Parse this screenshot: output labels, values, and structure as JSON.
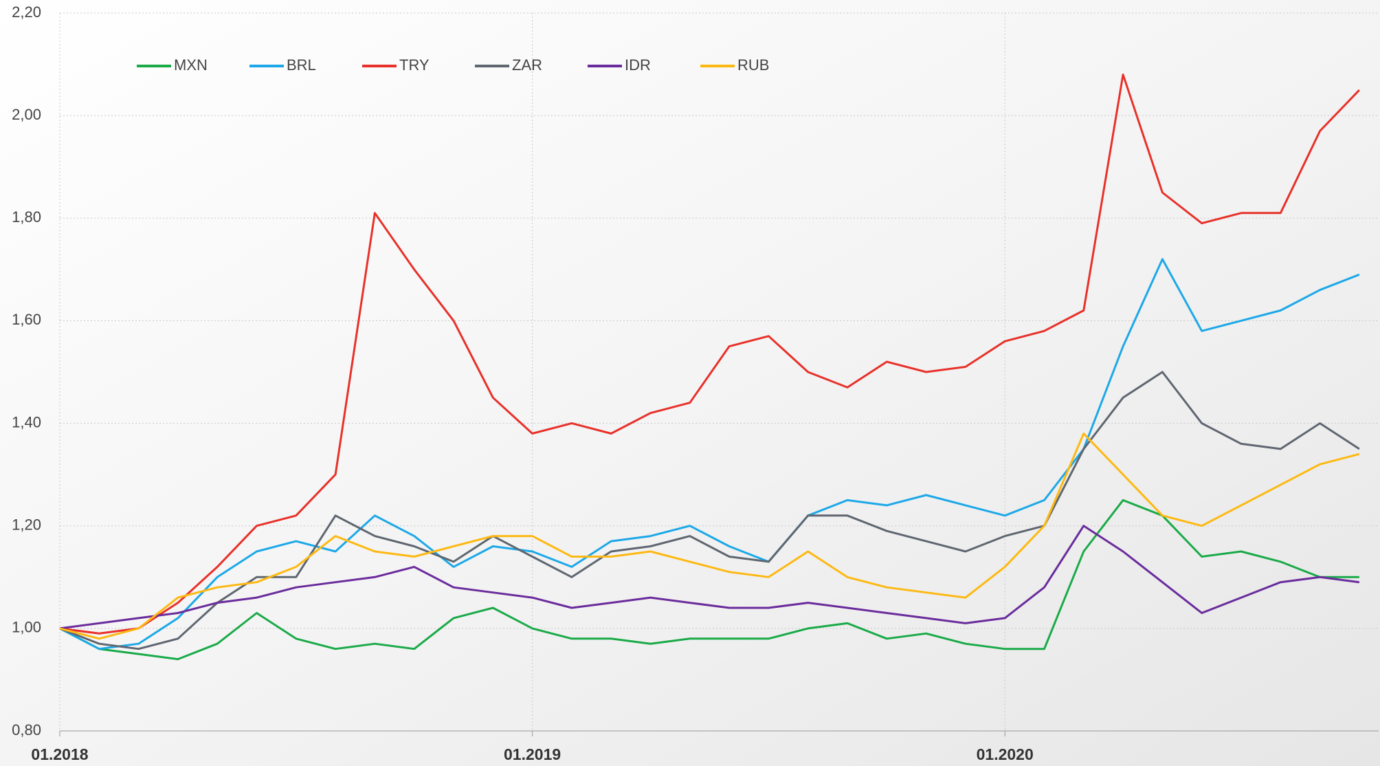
{
  "chart_data": {
    "type": "line",
    "categories": [
      "01.2018",
      null,
      null,
      null,
      null,
      null,
      null,
      null,
      null,
      null,
      null,
      null,
      "01.2019",
      null,
      null,
      null,
      null,
      null,
      null,
      null,
      null,
      null,
      null,
      null,
      "01.2020",
      null,
      null,
      null,
      null,
      null,
      null,
      null,
      null,
      null
    ],
    "series": [
      {
        "name": "MXN",
        "color": "#1aaa48",
        "values": [
          1.0,
          0.96,
          0.95,
          0.94,
          0.97,
          1.03,
          0.98,
          0.96,
          0.97,
          0.96,
          1.02,
          1.04,
          1.0,
          0.98,
          0.98,
          0.97,
          0.98,
          0.98,
          0.98,
          1.0,
          1.01,
          0.98,
          0.99,
          0.97,
          0.96,
          0.96,
          1.15,
          1.25,
          1.22,
          1.14,
          1.15,
          1.13,
          1.1,
          1.1
        ]
      },
      {
        "name": "BRL",
        "color": "#1ca8e8",
        "values": [
          1.0,
          0.96,
          0.97,
          1.02,
          1.1,
          1.15,
          1.17,
          1.15,
          1.22,
          1.18,
          1.12,
          1.16,
          1.15,
          1.12,
          1.17,
          1.18,
          1.2,
          1.16,
          1.13,
          1.22,
          1.25,
          1.24,
          1.26,
          1.24,
          1.22,
          1.25,
          1.35,
          1.55,
          1.72,
          1.58,
          1.6,
          1.62,
          1.66,
          1.69
        ]
      },
      {
        "name": "TRY",
        "color": "#e8312a",
        "values": [
          1.0,
          0.99,
          1.0,
          1.05,
          1.12,
          1.2,
          1.22,
          1.3,
          1.81,
          1.7,
          1.6,
          1.45,
          1.38,
          1.4,
          1.38,
          1.42,
          1.44,
          1.55,
          1.57,
          1.5,
          1.47,
          1.52,
          1.5,
          1.51,
          1.56,
          1.58,
          1.62,
          2.08,
          1.85,
          1.79,
          1.81,
          1.81,
          1.97,
          2.05
        ]
      },
      {
        "name": "ZAR",
        "color": "#5f6670",
        "values": [
          1.0,
          0.97,
          0.96,
          0.98,
          1.05,
          1.1,
          1.1,
          1.22,
          1.18,
          1.16,
          1.13,
          1.18,
          1.14,
          1.1,
          1.15,
          1.16,
          1.18,
          1.14,
          1.13,
          1.22,
          1.22,
          1.19,
          1.17,
          1.15,
          1.18,
          1.2,
          1.35,
          1.45,
          1.5,
          1.4,
          1.36,
          1.35,
          1.4,
          1.35
        ]
      },
      {
        "name": "IDR",
        "color": "#6a2c9c",
        "values": [
          1.0,
          1.01,
          1.02,
          1.03,
          1.05,
          1.06,
          1.08,
          1.09,
          1.1,
          1.12,
          1.08,
          1.07,
          1.06,
          1.04,
          1.05,
          1.06,
          1.05,
          1.04,
          1.04,
          1.05,
          1.04,
          1.03,
          1.02,
          1.01,
          1.02,
          1.08,
          1.2,
          1.15,
          1.09,
          1.03,
          1.06,
          1.09,
          1.1,
          1.09
        ]
      },
      {
        "name": "RUB",
        "color": "#fdb913",
        "values": [
          1.0,
          0.98,
          1.0,
          1.06,
          1.08,
          1.09,
          1.12,
          1.18,
          1.15,
          1.14,
          1.16,
          1.18,
          1.18,
          1.14,
          1.14,
          1.15,
          1.13,
          1.11,
          1.1,
          1.15,
          1.1,
          1.08,
          1.07,
          1.06,
          1.12,
          1.2,
          1.38,
          1.3,
          1.22,
          1.2,
          1.24,
          1.28,
          1.32,
          1.34
        ]
      }
    ],
    "ylim": [
      0.8,
      2.2
    ],
    "yticks": [
      {
        "value": 0.8,
        "label": "0,80"
      },
      {
        "value": 1.0,
        "label": "1,00"
      },
      {
        "value": 1.2,
        "label": "1,20"
      },
      {
        "value": 1.4,
        "label": "1,40"
      },
      {
        "value": 1.6,
        "label": "1,60"
      },
      {
        "value": 1.8,
        "label": "1,80"
      },
      {
        "value": 2.0,
        "label": "2,00"
      },
      {
        "value": 2.2,
        "label": "2,20"
      }
    ],
    "grid": true
  }
}
